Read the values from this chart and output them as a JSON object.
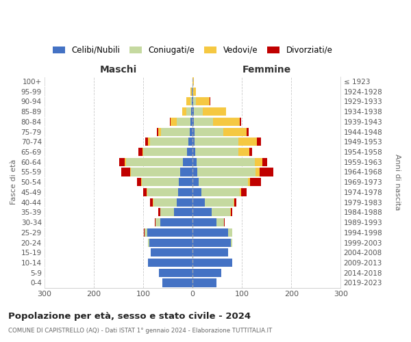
{
  "age_groups": [
    "0-4",
    "5-9",
    "10-14",
    "15-19",
    "20-24",
    "25-29",
    "30-34",
    "35-39",
    "40-44",
    "45-49",
    "50-54",
    "55-59",
    "60-64",
    "65-69",
    "70-74",
    "75-79",
    "80-84",
    "85-89",
    "90-94",
    "95-99",
    "100+"
  ],
  "birth_years": [
    "2019-2023",
    "2014-2018",
    "2009-2013",
    "2004-2008",
    "1999-2003",
    "1994-1998",
    "1989-1993",
    "1984-1988",
    "1979-1983",
    "1974-1978",
    "1969-1973",
    "1964-1968",
    "1959-1963",
    "1954-1958",
    "1949-1953",
    "1944-1948",
    "1939-1943",
    "1934-1938",
    "1929-1933",
    "1924-1928",
    "≤ 1923"
  ],
  "colors": {
    "celibi": "#4472c4",
    "coniugati": "#c5d9a0",
    "vedovi": "#f5c842",
    "divorziati": "#c00000"
  },
  "males": {
    "celibi": [
      62,
      68,
      90,
      85,
      88,
      92,
      65,
      38,
      32,
      30,
      28,
      25,
      20,
      12,
      8,
      6,
      4,
      3,
      1,
      1,
      0
    ],
    "coniugati": [
      0,
      0,
      0,
      0,
      2,
      5,
      10,
      28,
      48,
      62,
      75,
      100,
      115,
      88,
      78,
      58,
      28,
      10,
      4,
      1,
      0
    ],
    "vedovi": [
      0,
      0,
      0,
      0,
      0,
      0,
      0,
      0,
      1,
      1,
      1,
      2,
      2,
      2,
      4,
      5,
      12,
      8,
      8,
      2,
      0
    ],
    "divorziati": [
      0,
      0,
      0,
      0,
      0,
      2,
      2,
      3,
      5,
      7,
      8,
      18,
      12,
      8,
      6,
      3,
      2,
      0,
      0,
      0,
      0
    ]
  },
  "females": {
    "celibi": [
      48,
      58,
      80,
      72,
      78,
      72,
      48,
      38,
      25,
      18,
      12,
      10,
      8,
      5,
      4,
      4,
      3,
      2,
      1,
      0,
      0
    ],
    "coniugati": [
      0,
      0,
      0,
      0,
      2,
      8,
      15,
      38,
      58,
      78,
      100,
      118,
      118,
      88,
      88,
      58,
      38,
      18,
      5,
      1,
      0
    ],
    "vedovi": [
      0,
      0,
      0,
      0,
      0,
      0,
      0,
      1,
      1,
      2,
      4,
      8,
      15,
      22,
      38,
      48,
      55,
      48,
      28,
      5,
      2
    ],
    "divorziati": [
      0,
      0,
      0,
      0,
      0,
      0,
      2,
      3,
      5,
      12,
      22,
      28,
      10,
      5,
      8,
      4,
      2,
      0,
      2,
      0,
      0
    ]
  },
  "title": "Popolazione per età, sesso e stato civile - 2024",
  "subtitle": "COMUNE DI CAPISTRELLO (AQ) - Dati ISTAT 1° gennaio 2024 - Elaborazione TUTTITALIA.IT",
  "xlabel_left": "Maschi",
  "xlabel_right": "Femmine",
  "ylabel_left": "Fasce di età",
  "ylabel_right": "Anni di nascita",
  "xlim": 300,
  "legend_labels": [
    "Celibi/Nubili",
    "Coniugati/e",
    "Vedovi/e",
    "Divorziati/e"
  ],
  "background_color": "#ffffff",
  "grid_color": "#c8c8c8"
}
